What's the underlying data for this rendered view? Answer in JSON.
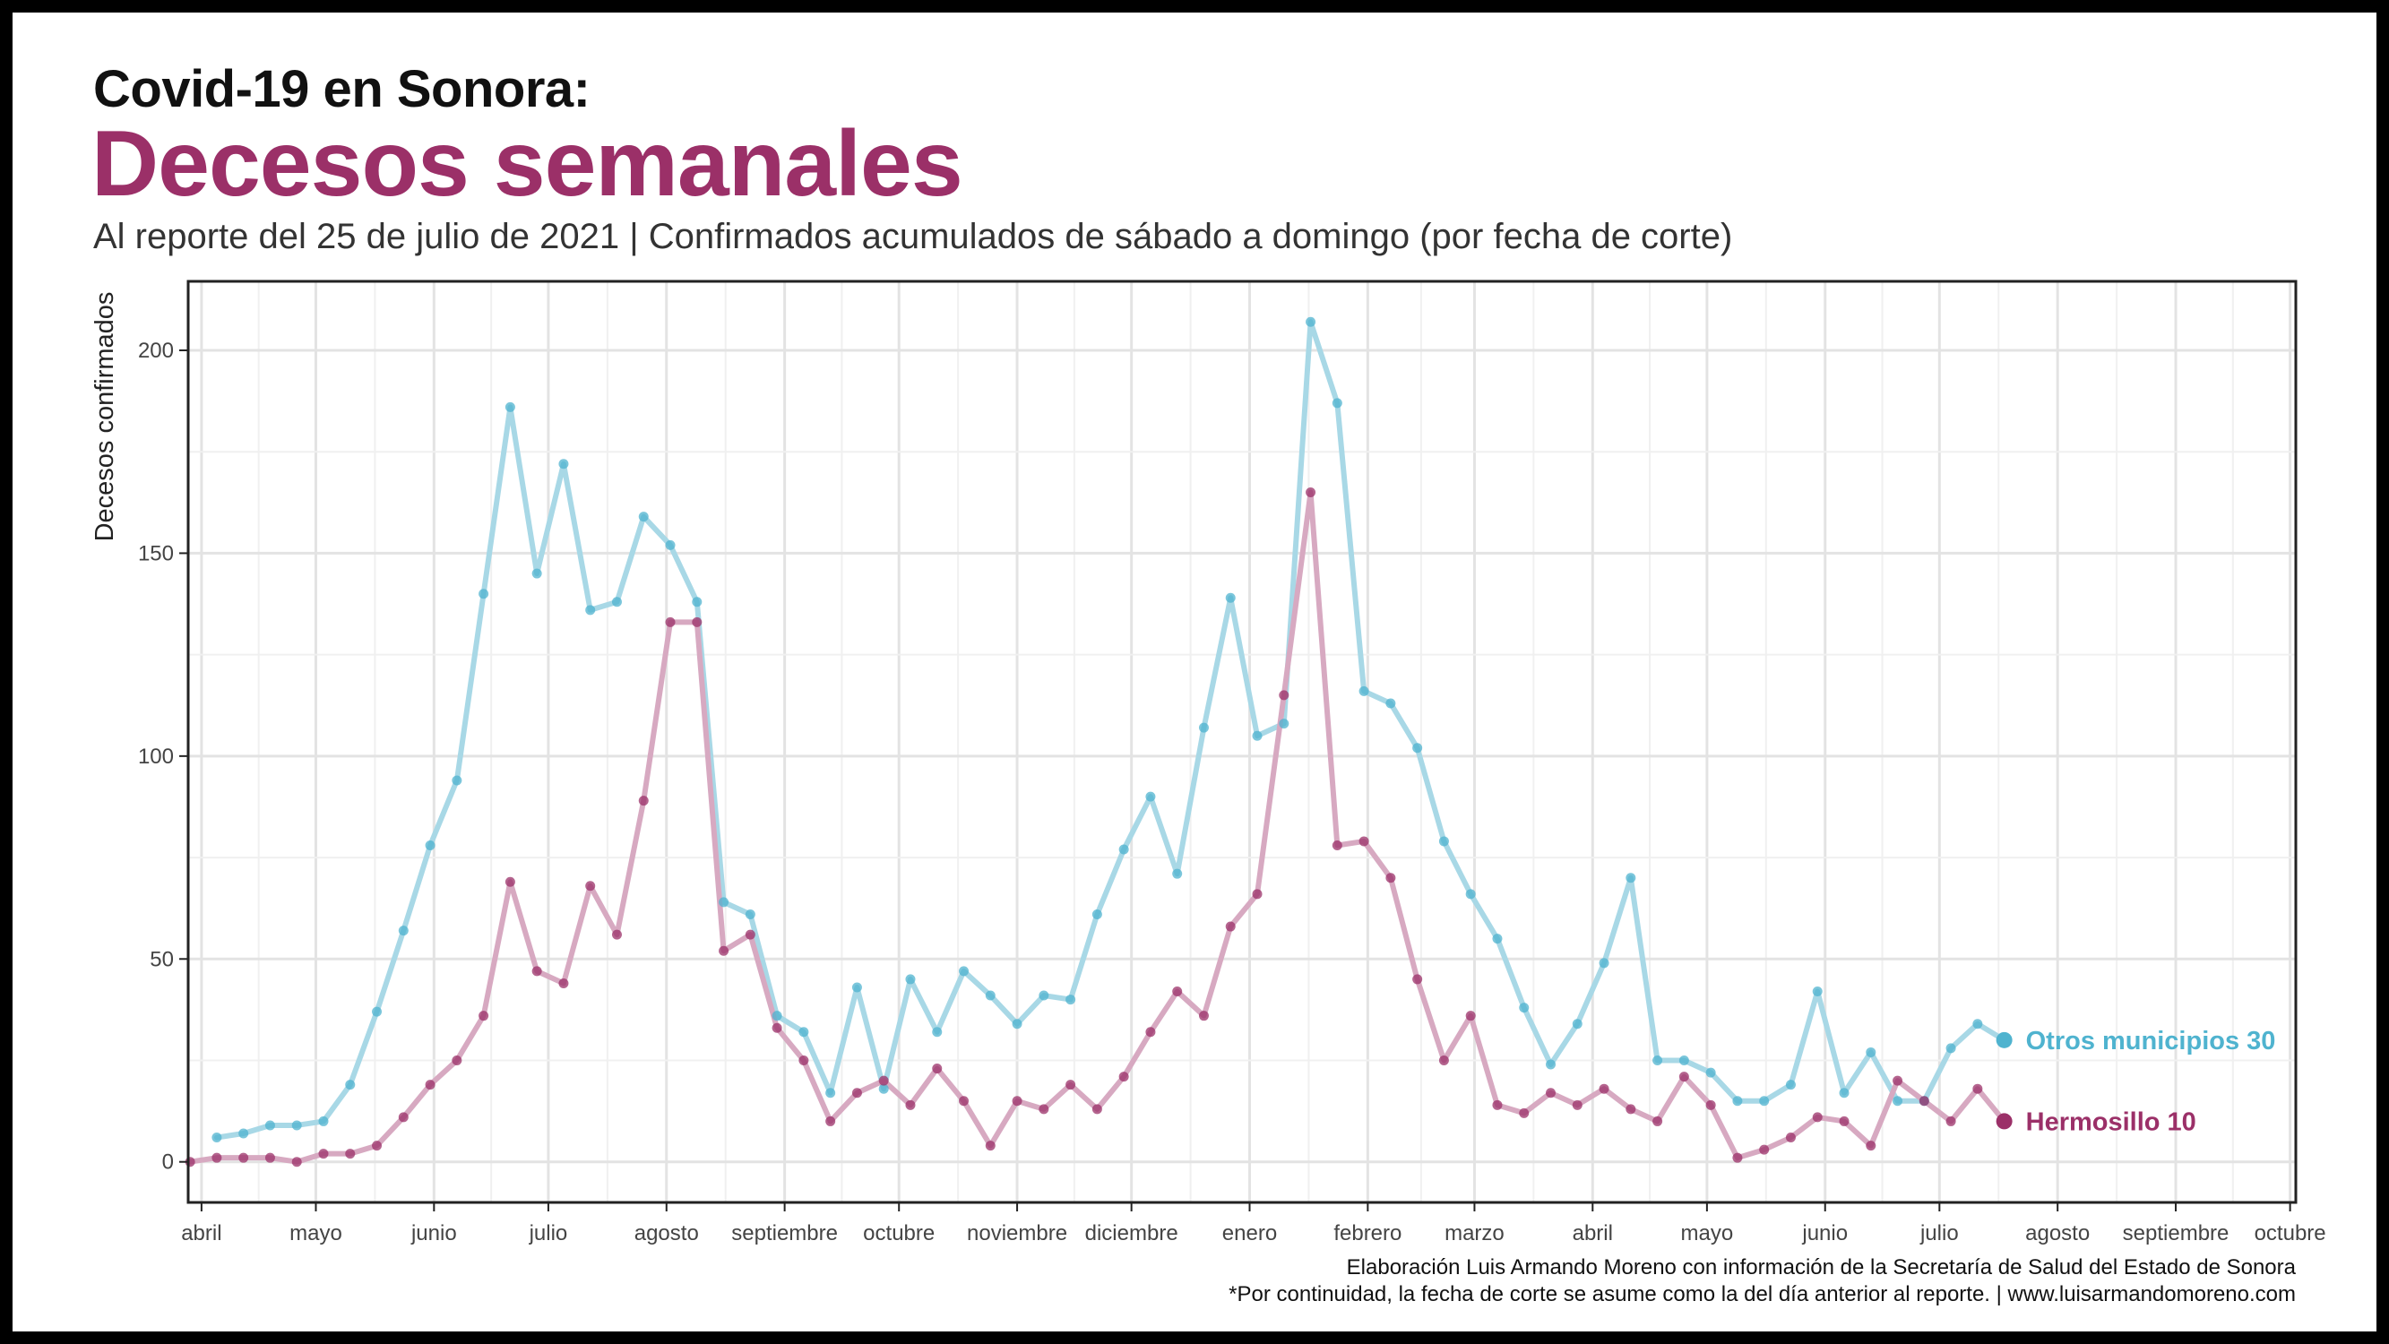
{
  "header": {
    "title": "Covid-19 en Sonora:",
    "highlight": "Decesos semanales",
    "subtitle": "Al reporte del 25 de julio de 2021 | Confirmados acumulados de sábado a domingo (por fecha de corte)"
  },
  "caption": {
    "line1": "Elaboración Luis Armando Moreno con información de la Secretaría de Salud del Estado de Sonora",
    "line2": "*Por continuidad, la fecha de corte se asume como la del día anterior al reporte. | www.luisarmandomoreno.com"
  },
  "chart_data": {
    "type": "line",
    "ylabel": "Decesos confirmados",
    "xlabel": "",
    "ylim": [
      -10,
      217
    ],
    "yticks": [
      0,
      50,
      100,
      150,
      200
    ],
    "grid": true,
    "legend": "inline-right",
    "x_ticks": [
      "abril",
      "mayo",
      "junio",
      "julio",
      "agosto",
      "septiembre",
      "octubre",
      "noviembre",
      "diciembre",
      "enero",
      "febrero",
      "marzo",
      "abril",
      "mayo",
      "junio",
      "julio",
      "agosto",
      "septiembre",
      "octubre"
    ],
    "x_start": "2020-03-29",
    "x_step_days": 7,
    "series": [
      {
        "name": "Otros municipios",
        "last_label": "Otros municipios 30",
        "color": "#4fb3cf",
        "line_color": "#a8d8e6",
        "values": [
          null,
          6,
          7,
          9,
          9,
          10,
          19,
          37,
          57,
          78,
          94,
          140,
          186,
          145,
          172,
          136,
          138,
          159,
          152,
          138,
          64,
          61,
          36,
          32,
          17,
          43,
          18,
          45,
          32,
          47,
          41,
          34,
          41,
          40,
          61,
          77,
          90,
          71,
          107,
          139,
          105,
          108,
          207,
          187,
          116,
          113,
          102,
          79,
          66,
          55,
          38,
          24,
          34,
          49,
          70,
          25,
          25,
          22,
          15,
          15,
          19,
          42,
          17,
          27,
          15,
          15,
          28,
          34,
          30
        ]
      },
      {
        "name": "Hermosillo",
        "last_label": "Hermosillo 10",
        "color": "#9b3068",
        "line_color": "#d7a9c1",
        "values": [
          0,
          1,
          1,
          1,
          0,
          2,
          2,
          4,
          11,
          19,
          25,
          36,
          69,
          47,
          44,
          68,
          56,
          89,
          133,
          133,
          52,
          56,
          33,
          25,
          10,
          17,
          20,
          14,
          23,
          15,
          4,
          15,
          13,
          19,
          13,
          21,
          32,
          42,
          36,
          58,
          66,
          115,
          165,
          78,
          79,
          70,
          45,
          25,
          36,
          14,
          12,
          17,
          14,
          18,
          13,
          10,
          21,
          14,
          1,
          3,
          6,
          11,
          10,
          4,
          20,
          15,
          10,
          18,
          10
        ]
      }
    ]
  }
}
